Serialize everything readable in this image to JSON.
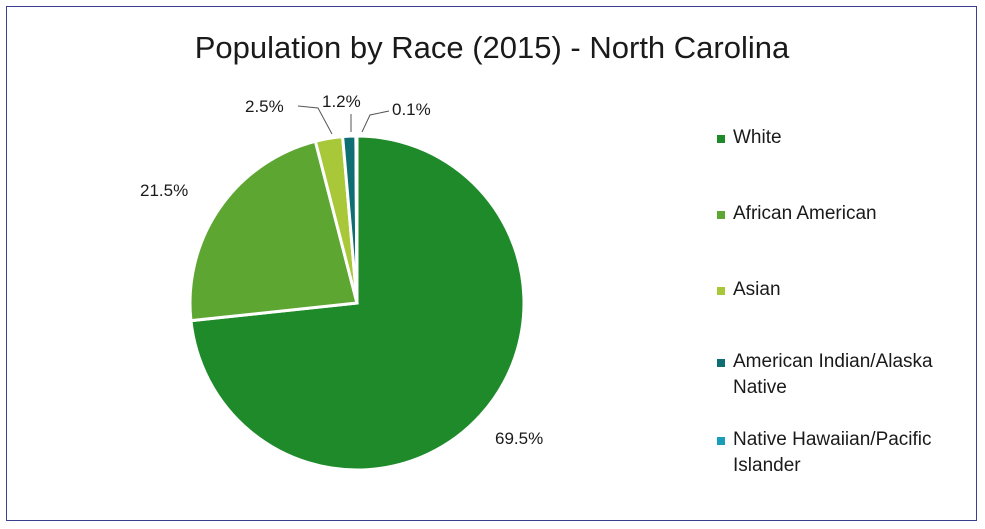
{
  "chart_data": {
    "type": "pie",
    "title": "Population by Race (2015) - North Carolina",
    "categories": [
      "White",
      "African American",
      "Asian",
      "American Indian/Alaska Native",
      "Native Hawaiian/Pacific Islander"
    ],
    "values": [
      69.5,
      21.5,
      2.5,
      1.2,
      0.1
    ],
    "data_labels": [
      "69.5%",
      "21.5%",
      "2.5%",
      "1.2%",
      "0.1%"
    ],
    "colors": [
      "#1e8a2a",
      "#5ea632",
      "#a8c83a",
      "#0f6e72",
      "#1a9db8"
    ],
    "legend_placement": "right"
  }
}
